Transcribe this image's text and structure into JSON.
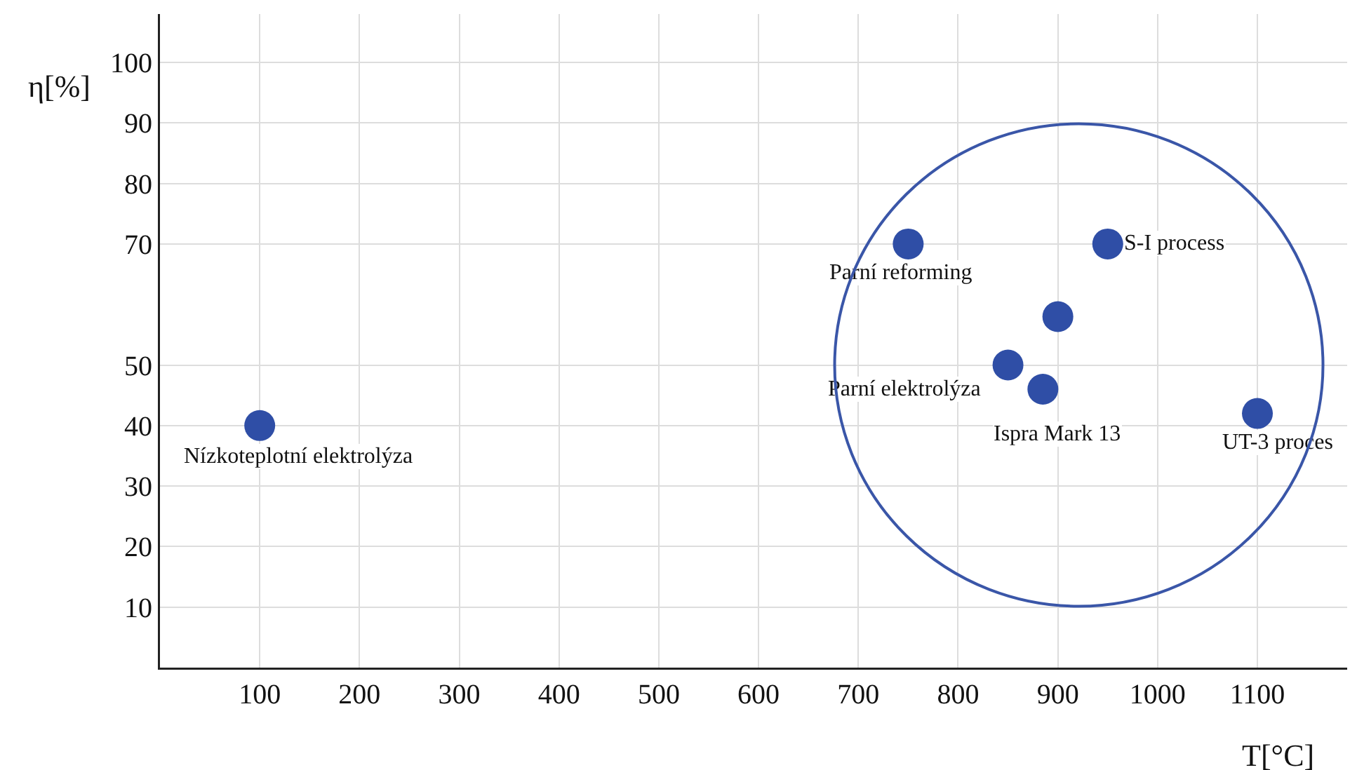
{
  "chart_data": {
    "type": "scatter",
    "xlabel": "T[°C]",
    "ylabel": "η[%]",
    "x": [
      100,
      750,
      950,
      900,
      850,
      885,
      1100
    ],
    "series": [
      {
        "color": "#2f4ea6",
        "values": [
          40,
          70,
          70,
          58,
          50,
          46,
          42
        ]
      }
    ],
    "marker": "circle",
    "grid": true,
    "xlim": [
      0,
      1190
    ],
    "ylim": [
      0,
      108
    ],
    "xticks": [
      100,
      200,
      300,
      400,
      500,
      600,
      700,
      800,
      900,
      1000,
      1100
    ],
    "yticks": [
      10,
      20,
      30,
      40,
      50,
      70,
      80,
      90,
      100
    ],
    "annotations": [
      {
        "text": "Nízkoteplotní elektrolýza",
        "x": 100,
        "y": 40
      },
      {
        "text": "Parní reforming",
        "x": 750,
        "y": 70
      },
      {
        "text": "S-I process",
        "x": 950,
        "y": 70
      },
      {
        "text": "Parní elektrolýza",
        "x": 850,
        "y": 50
      },
      {
        "text": "Ispra Mark 13",
        "x": 885,
        "y": 46
      },
      {
        "text": "UT-3 proces",
        "x": 1100,
        "y": 42
      }
    ]
  }
}
